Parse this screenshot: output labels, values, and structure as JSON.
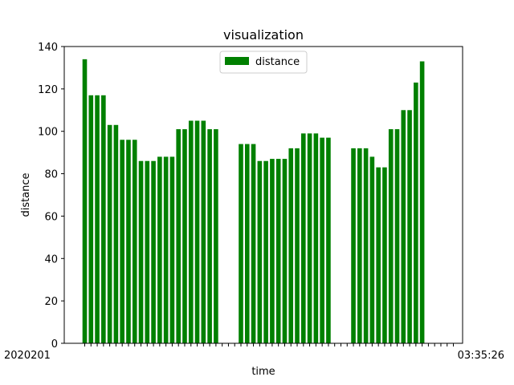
{
  "chart_data": {
    "type": "bar",
    "title": "visualization",
    "xlabel": "time",
    "ylabel": "distance",
    "ylim": [
      0,
      140
    ],
    "yticks": [
      0,
      20,
      40,
      60,
      80,
      100,
      120,
      140
    ],
    "legend": {
      "position": "top-center",
      "entries": [
        "distance"
      ]
    },
    "grid": false,
    "series": [
      {
        "name": "distance",
        "color": "#008000",
        "values": [
          134,
          117,
          117,
          117,
          103,
          103,
          96,
          96,
          96,
          86,
          86,
          86,
          88,
          88,
          88,
          101,
          101,
          105,
          105,
          105,
          101,
          101,
          0,
          0,
          0,
          94,
          94,
          94,
          86,
          86,
          87,
          87,
          87,
          92,
          92,
          99,
          99,
          99,
          97,
          97,
          0,
          0,
          0,
          92,
          92,
          92,
          88,
          83,
          83,
          101,
          101,
          110,
          110,
          123,
          133,
          0,
          0,
          0,
          0,
          0
        ]
      }
    ],
    "x_tick_labels": {
      "left_cluster": "2020201",
      "right_cluster": "03:35:26"
    }
  }
}
